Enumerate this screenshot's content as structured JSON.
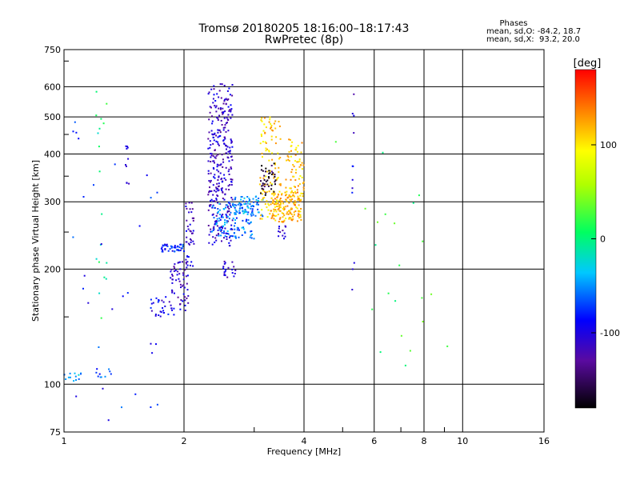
{
  "chart_data": {
    "type": "scatter",
    "title": "Tromsø 20180205 18:16:00–18:17:43",
    "subtitle": "RwPretec (8p)",
    "xlabel": "Frequency [MHz]",
    "ylabel": "Stationary phase Virtual Height [km]",
    "x_scale": "log",
    "y_scale": "log",
    "xlim": [
      1,
      16
    ],
    "ylim": [
      75,
      750
    ],
    "x_ticks": [
      "1",
      "2",
      "4",
      "6",
      "8",
      "10",
      "16"
    ],
    "x_tick_values": [
      1,
      2,
      4,
      6,
      8,
      10,
      16
    ],
    "y_ticks": [
      "750",
      "600",
      "500",
      "400",
      "300",
      "200",
      "100",
      "75"
    ],
    "y_tick_values": [
      750,
      600,
      500,
      400,
      300,
      200,
      100,
      75
    ],
    "grid": true,
    "phase_stats": {
      "title": "Phases",
      "line_o": "mean, sd,O: -84.2, 18.7",
      "line_x": "mean, sd,X:  93.2, 20.0"
    },
    "colorbar": {
      "label": "[deg]",
      "range": [
        -180,
        180
      ],
      "ticks": [
        "100",
        "0",
        "-100"
      ],
      "tick_values": [
        100,
        0,
        -100
      ]
    },
    "clusters": [
      {
        "f0": 2.3,
        "f1": 2.65,
        "h0": 230,
        "h1": 610,
        "phase": -110,
        "n": 320
      },
      {
        "f0": 2.35,
        "f1": 3.0,
        "h0": 240,
        "h1": 300,
        "phase": -60,
        "n": 120
      },
      {
        "f0": 2.65,
        "f1": 3.2,
        "h0": 275,
        "h1": 310,
        "phase": -50,
        "n": 60
      },
      {
        "f0": 3.1,
        "f1": 3.5,
        "h0": 270,
        "h1": 500,
        "phase": 110,
        "n": 110
      },
      {
        "f0": 3.3,
        "f1": 3.95,
        "h0": 265,
        "h1": 320,
        "phase": 120,
        "n": 150
      },
      {
        "f0": 3.6,
        "f1": 4.0,
        "h0": 300,
        "h1": 440,
        "phase": 115,
        "n": 70
      },
      {
        "f0": 3.1,
        "f1": 3.4,
        "h0": 310,
        "h1": 380,
        "phase": -160,
        "n": 40
      },
      {
        "f0": 1.75,
        "f1": 2.0,
        "h0": 222,
        "h1": 232,
        "phase": -80,
        "n": 45
      },
      {
        "f0": 1.85,
        "f1": 2.05,
        "h0": 155,
        "h1": 210,
        "phase": -110,
        "n": 60
      },
      {
        "f0": 1.65,
        "f1": 1.9,
        "h0": 150,
        "h1": 170,
        "phase": -100,
        "n": 30
      },
      {
        "f0": 2.02,
        "f1": 2.12,
        "h0": 200,
        "h1": 300,
        "phase": -110,
        "n": 40
      },
      {
        "f0": 2.5,
        "f1": 2.7,
        "h0": 190,
        "h1": 210,
        "phase": -110,
        "n": 20
      },
      {
        "f0": 3.45,
        "f1": 3.6,
        "h0": 240,
        "h1": 260,
        "phase": -110,
        "n": 12
      },
      {
        "f0": 1.0,
        "f1": 1.15,
        "h0": 102,
        "h1": 107,
        "phase": -40,
        "n": 14
      },
      {
        "f0": 1.2,
        "f1": 1.35,
        "h0": 104,
        "h1": 110,
        "phase": -70,
        "n": 10
      },
      {
        "f0": 1.42,
        "f1": 1.46,
        "h0": 320,
        "h1": 420,
        "phase": -110,
        "n": 10
      },
      {
        "f0": 5.28,
        "f1": 5.35,
        "h0": 160,
        "h1": 620,
        "phase": -100,
        "n": 12
      },
      {
        "f0": 1.2,
        "f1": 1.28,
        "h0": 120,
        "h1": 620,
        "phase": 0,
        "n": 18
      },
      {
        "f0": 1.05,
        "f1": 1.8,
        "h0": 80,
        "h1": 520,
        "phase": -80,
        "n": 30
      },
      {
        "f0": 4.8,
        "f1": 10.0,
        "h0": 100,
        "h1": 440,
        "phase": 20,
        "n": 22
      }
    ]
  }
}
